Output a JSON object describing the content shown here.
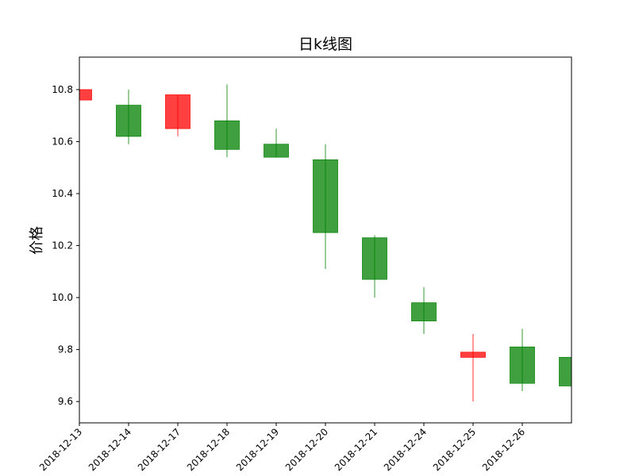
{
  "chart_data": {
    "type": "candlestick",
    "title": "日k线图",
    "y_label": "价格",
    "categories": [
      "2018-12-13",
      "2018-12-14",
      "2018-12-17",
      "2018-12-18",
      "2018-12-19",
      "2018-12-20",
      "2018-12-21",
      "2018-12-24",
      "2018-12-25",
      "2018-12-26",
      null
    ],
    "open": [
      10.76,
      10.74,
      10.65,
      10.68,
      10.59,
      10.53,
      10.23,
      9.98,
      9.77,
      9.81,
      9.77
    ],
    "high": [
      10.8,
      10.8,
      10.78,
      10.82,
      10.65,
      10.59,
      10.24,
      10.04,
      9.86,
      9.88,
      9.77
    ],
    "low": [
      10.76,
      10.59,
      10.62,
      10.54,
      10.54,
      10.11,
      10.0,
      9.86,
      9.6,
      9.64,
      9.66
    ],
    "close": [
      10.8,
      10.62,
      10.78,
      10.57,
      10.54,
      10.25,
      10.07,
      9.91,
      9.79,
      9.67,
      9.66
    ],
    "up_color": "#ff0000",
    "down_color": "#008000",
    "ylim": [
      9.518,
      10.925
    ],
    "yticks": [
      9.6,
      9.8,
      {
        "value": 10.0,
        "label": "10.0"
      },
      10.2,
      10.4,
      10.6,
      10.8
    ]
  }
}
